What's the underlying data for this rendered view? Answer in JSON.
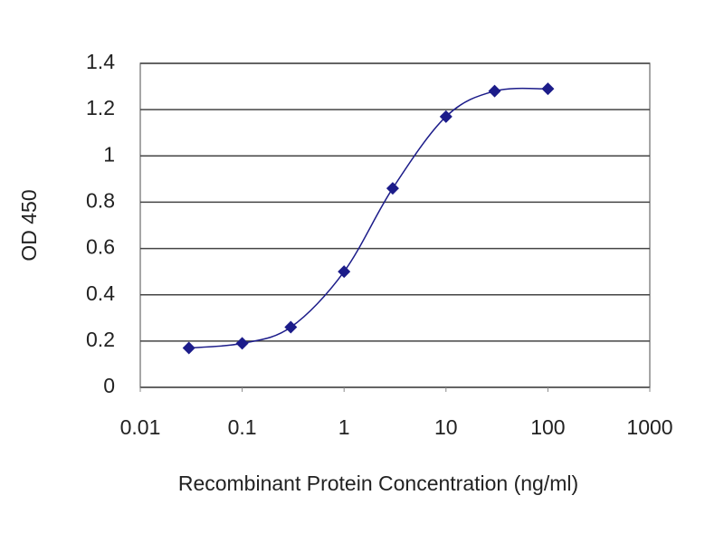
{
  "chart_data": {
    "type": "line",
    "x_label": "Recombinant Protein Concentration (ng/ml)",
    "y_label": "OD 450",
    "xscale": "log",
    "xlim": [
      0.01,
      1000
    ],
    "xticks": [
      0.01,
      0.1,
      1,
      10,
      100,
      1000
    ],
    "ylim": [
      0,
      1.4
    ],
    "yticks": [
      0,
      0.2,
      0.4,
      0.6,
      0.8,
      1,
      1.2,
      1.4
    ],
    "grid": true,
    "series": [
      {
        "color": "#1c1c8a",
        "x": [
          0.03,
          0.1,
          0.3,
          1,
          3,
          10,
          30,
          100
        ],
        "values": [
          0.17,
          0.19,
          0.26,
          0.5,
          0.86,
          1.17,
          1.28,
          1.29
        ]
      }
    ]
  }
}
